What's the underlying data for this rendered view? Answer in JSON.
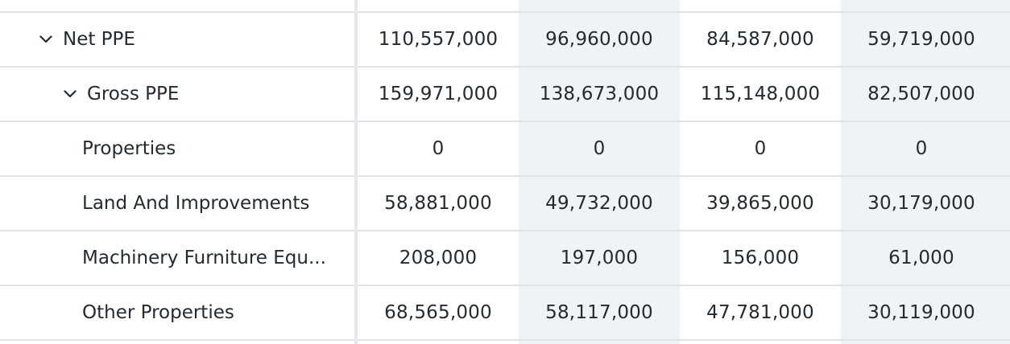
{
  "rows": [
    {
      "label": "Net PPE",
      "values": [
        "110,557,000",
        "96,960,000",
        "84,587,000",
        "59,719,000"
      ],
      "expandable": true,
      "level": 0
    },
    {
      "label": "Gross PPE",
      "values": [
        "159,971,000",
        "138,673,000",
        "115,148,000",
        "82,507,000"
      ],
      "expandable": true,
      "level": 1
    },
    {
      "label": "Properties",
      "values": [
        "0",
        "0",
        "0",
        "0"
      ],
      "expandable": false,
      "level": 2
    },
    {
      "label": "Land And Improvements",
      "values": [
        "58,881,000",
        "49,732,000",
        "39,865,000",
        "30,179,000"
      ],
      "expandable": false,
      "level": 2
    },
    {
      "label": "Machinery Furniture Equ...",
      "values": [
        "208,000",
        "197,000",
        "156,000",
        "61,000"
      ],
      "expandable": false,
      "level": 2
    },
    {
      "label": "Other Properties",
      "values": [
        "68,565,000",
        "58,117,000",
        "47,781,000",
        "30,119,000"
      ],
      "expandable": false,
      "level": 2
    }
  ],
  "colors": {
    "alt_column": "#f0f3f5",
    "divider": "#e4e8eb",
    "text": "#232a31"
  },
  "icons": {
    "expand": "chevron-down-icon"
  }
}
